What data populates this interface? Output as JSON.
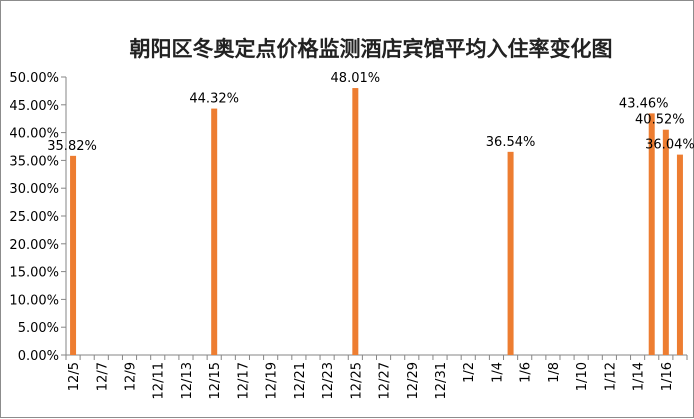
{
  "chart_data": {
    "type": "bar",
    "title": "朝阳区冬奥定点价格监测酒店宾馆平均入住率变化图",
    "xlabel": "",
    "ylabel": "",
    "ylim": [
      0,
      0.5
    ],
    "y_ticks": [
      0,
      0.05,
      0.1,
      0.15,
      0.2,
      0.25,
      0.3,
      0.35,
      0.4,
      0.45,
      0.5
    ],
    "y_tick_labels": [
      "0.00%",
      "5.00%",
      "10.00%",
      "15.00%",
      "20.00%",
      "25.00%",
      "30.00%",
      "35.00%",
      "40.00%",
      "45.00%",
      "50.00%"
    ],
    "grid": false,
    "legend": "none",
    "bar_color": "#ED7D31",
    "categories": [
      "12/5",
      "12/6",
      "12/7",
      "12/8",
      "12/9",
      "12/10",
      "12/11",
      "12/12",
      "12/13",
      "12/14",
      "12/15",
      "12/16",
      "12/17",
      "12/18",
      "12/19",
      "12/20",
      "12/21",
      "12/22",
      "12/23",
      "12/24",
      "12/25",
      "12/26",
      "12/27",
      "12/28",
      "12/29",
      "12/30",
      "12/31",
      "1/1",
      "1/2",
      "1/3",
      "1/4",
      "1/5",
      "1/6",
      "1/7",
      "1/8",
      "1/9",
      "1/10",
      "1/11",
      "1/12",
      "1/13",
      "1/14",
      "1/15",
      "1/16",
      "1/17"
    ],
    "x_tick_labels": [
      "12/5",
      "12/7",
      "12/9",
      "12/11",
      "12/13",
      "12/15",
      "12/17",
      "12/19",
      "12/21",
      "12/23",
      "12/25",
      "12/27",
      "12/29",
      "12/31",
      "1/2",
      "1/4",
      "1/6",
      "1/8",
      "1/10",
      "1/12",
      "1/14",
      "1/16"
    ],
    "points": [
      {
        "x": "12/5",
        "value": 0.3582,
        "label": "35.82%"
      },
      {
        "x": "12/15",
        "value": 0.4432,
        "label": "44.32%"
      },
      {
        "x": "12/25",
        "value": 0.4801,
        "label": "48.01%"
      },
      {
        "x": "1/5",
        "value": 0.3654,
        "label": "36.54%"
      },
      {
        "x": "1/15",
        "value": 0.4346,
        "label": "43.46%"
      },
      {
        "x": "1/16",
        "value": 0.4052,
        "label": "40.52%"
      },
      {
        "x": "1/17",
        "value": 0.3604,
        "label": "36.04%"
      }
    ]
  }
}
